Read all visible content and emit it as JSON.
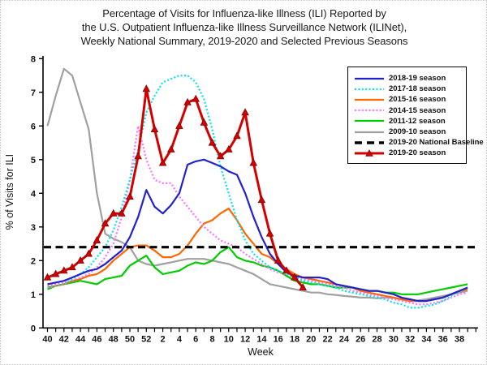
{
  "chart_data": {
    "type": "line",
    "title_lines": [
      "Percentage of Visits for Influenza-like Illness (ILI) Reported by",
      "the U.S. Outpatient Influenza-like Illness Surveillance Network (ILINet),",
      "Weekly National Summary, 2019-2020 and Selected Previous Seasons"
    ],
    "xlabel": "Week",
    "ylabel": "% of Visits for ILI",
    "ylim": [
      0,
      8
    ],
    "yticks": [
      0,
      1,
      2,
      3,
      4,
      5,
      6,
      7,
      8
    ],
    "x_week_sequence": [
      40,
      41,
      42,
      43,
      44,
      45,
      46,
      47,
      48,
      49,
      50,
      51,
      52,
      1,
      2,
      3,
      4,
      5,
      6,
      7,
      8,
      9,
      10,
      11,
      12,
      13,
      14,
      15,
      16,
      17,
      18,
      19,
      20,
      21,
      22,
      23,
      24,
      25,
      26,
      27,
      28,
      29,
      30,
      31,
      32,
      33,
      34,
      35,
      36,
      37,
      38,
      39
    ],
    "x_tick_label_every": 2,
    "grid": false,
    "legend_position": "top-right",
    "baseline": {
      "label": "2019-20 National Baseline",
      "value": 2.4,
      "color": "#000000"
    },
    "series": [
      {
        "name": "2018-19 season",
        "color": "#2222CC",
        "dash": "",
        "width": 2.2,
        "marker": "none",
        "values": [
          1.3,
          1.35,
          1.4,
          1.5,
          1.6,
          1.7,
          1.75,
          1.9,
          2.1,
          2.3,
          2.7,
          3.3,
          4.1,
          3.6,
          3.4,
          3.65,
          4.0,
          4.85,
          4.95,
          5.0,
          4.9,
          4.8,
          4.65,
          4.55,
          4.0,
          3.3,
          2.7,
          2.2,
          1.9,
          1.65,
          1.55,
          1.5,
          1.5,
          1.5,
          1.45,
          1.3,
          1.25,
          1.2,
          1.15,
          1.1,
          1.1,
          1.05,
          1.0,
          0.9,
          0.85,
          0.8,
          0.8,
          0.85,
          0.9,
          1.0,
          1.1,
          1.2
        ]
      },
      {
        "name": "2017-18 season",
        "color": "#00E6EE",
        "dash": "2 2.4",
        "width": 2.2,
        "marker": "none",
        "values": [
          1.2,
          1.25,
          1.3,
          1.45,
          1.6,
          1.8,
          2.1,
          2.4,
          2.9,
          3.6,
          4.4,
          5.3,
          6.4,
          6.9,
          7.3,
          7.4,
          7.5,
          7.5,
          7.3,
          6.8,
          5.9,
          4.8,
          4.0,
          3.2,
          2.6,
          2.2,
          2.0,
          1.8,
          1.7,
          1.6,
          1.5,
          1.4,
          1.35,
          1.3,
          1.25,
          1.2,
          1.1,
          1.05,
          1.0,
          0.95,
          0.9,
          0.85,
          0.75,
          0.7,
          0.6,
          0.6,
          0.65,
          0.7,
          0.8,
          0.95,
          1.1,
          1.2
        ]
      },
      {
        "name": "2015-16 season",
        "color": "#FF6600",
        "dash": "",
        "width": 2.2,
        "marker": "none",
        "values": [
          1.2,
          1.25,
          1.3,
          1.4,
          1.45,
          1.55,
          1.6,
          1.75,
          2.0,
          2.2,
          2.4,
          2.45,
          2.45,
          2.3,
          2.1,
          2.1,
          2.2,
          2.45,
          2.8,
          3.1,
          3.2,
          3.4,
          3.55,
          3.2,
          2.8,
          2.5,
          2.2,
          2.1,
          1.9,
          1.75,
          1.6,
          1.5,
          1.45,
          1.4,
          1.35,
          1.3,
          1.25,
          1.2,
          1.1,
          1.05,
          1.0,
          0.95,
          0.9,
          0.85,
          0.8,
          0.8,
          0.8,
          0.85,
          0.9,
          1.0,
          1.1,
          1.15
        ]
      },
      {
        "name": "2014-15 season",
        "color": "#FF70FF",
        "dash": "2 2.4",
        "width": 2.2,
        "marker": "none",
        "values": [
          1.25,
          1.3,
          1.35,
          1.4,
          1.5,
          1.6,
          1.8,
          2.1,
          2.5,
          3.3,
          4.4,
          6.0,
          5.0,
          4.4,
          4.3,
          4.3,
          3.9,
          3.6,
          3.3,
          3.0,
          2.8,
          2.6,
          2.5,
          2.4,
          2.2,
          2.05,
          1.9,
          1.75,
          1.65,
          1.6,
          1.5,
          1.45,
          1.4,
          1.35,
          1.3,
          1.25,
          1.2,
          1.1,
          1.05,
          1.0,
          0.95,
          0.9,
          0.85,
          0.8,
          0.75,
          0.7,
          0.7,
          0.75,
          0.8,
          0.9,
          1.0,
          1.05
        ]
      },
      {
        "name": "2011-12 season",
        "color": "#00CC00",
        "dash": "",
        "width": 2.2,
        "marker": "none",
        "values": [
          1.15,
          1.25,
          1.3,
          1.35,
          1.4,
          1.35,
          1.3,
          1.45,
          1.5,
          1.55,
          1.85,
          2.0,
          2.15,
          1.8,
          1.6,
          1.65,
          1.7,
          1.85,
          1.95,
          1.9,
          2.0,
          2.25,
          2.4,
          2.1,
          2.0,
          1.95,
          1.85,
          1.8,
          1.7,
          1.55,
          1.4,
          1.35,
          1.3,
          1.3,
          1.25,
          1.2,
          1.2,
          1.2,
          1.15,
          1.1,
          1.1,
          1.05,
          1.05,
          1.0,
          1.0,
          1.0,
          1.05,
          1.1,
          1.15,
          1.2,
          1.25,
          1.3
        ]
      },
      {
        "name": "2009-10 season",
        "color": "#A0A0A0",
        "dash": "",
        "width": 2.2,
        "marker": "none",
        "values": [
          6.0,
          6.9,
          7.7,
          7.5,
          6.7,
          5.9,
          4.0,
          2.8,
          2.65,
          2.55,
          2.4,
          2.0,
          1.9,
          1.85,
          1.9,
          1.95,
          2.0,
          2.05,
          2.05,
          2.05,
          2.0,
          1.95,
          1.9,
          1.8,
          1.7,
          1.6,
          1.45,
          1.3,
          1.25,
          1.2,
          1.15,
          1.1,
          1.05,
          1.05,
          1.0,
          0.98,
          0.95,
          0.93,
          0.9,
          0.9,
          0.88,
          0.9,
          0.9,
          0.85,
          0.8,
          0.82,
          0.85,
          0.9,
          0.95,
          1.0,
          1.05,
          1.1
        ]
      },
      {
        "name": "2019-20 season",
        "color": "#D40000",
        "dash": "",
        "width": 3,
        "marker": "triangle",
        "values": [
          1.5,
          1.6,
          1.7,
          1.8,
          2.0,
          2.2,
          2.6,
          3.1,
          3.4,
          3.4,
          3.9,
          5.1,
          7.1,
          5.9,
          4.9,
          5.3,
          6.0,
          6.7,
          6.8,
          6.1,
          5.5,
          5.1,
          5.3,
          5.7,
          6.4,
          4.9,
          3.8,
          2.8,
          2.0,
          1.7,
          1.5,
          1.2,
          null,
          null,
          null,
          null,
          null,
          null,
          null,
          null,
          null,
          null,
          null,
          null,
          null,
          null,
          null,
          null,
          null,
          null,
          null,
          null
        ]
      }
    ],
    "legend_order": [
      "2018-19 season",
      "2017-18 season",
      "2015-16 season",
      "2014-15 season",
      "2011-12 season",
      "2009-10 season",
      "2019-20 National Baseline",
      "2019-20 season"
    ]
  }
}
